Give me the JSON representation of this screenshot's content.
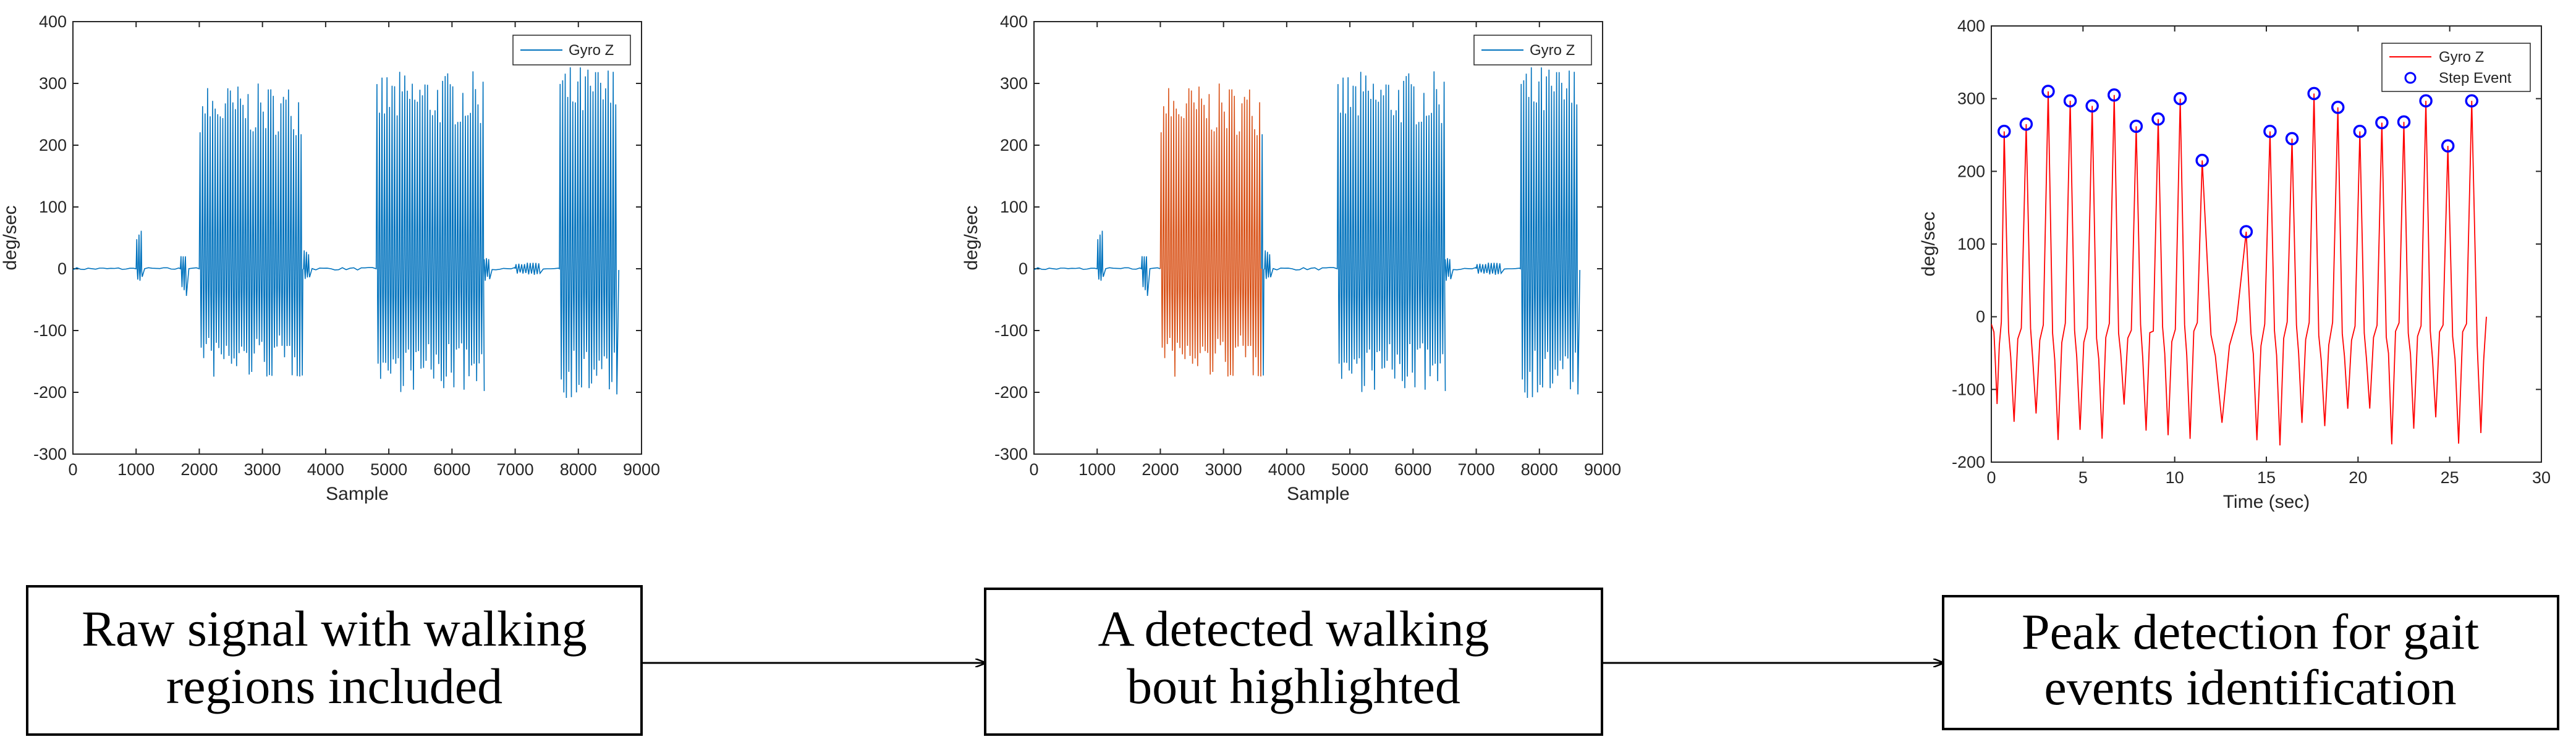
{
  "chart_data": [
    {
      "type": "line",
      "title": "",
      "xlabel": "Sample",
      "ylabel": "deg/sec",
      "xlim": [
        0,
        9000
      ],
      "ylim": [
        -300,
        400
      ],
      "xticks": [
        0,
        1000,
        2000,
        3000,
        4000,
        5000,
        6000,
        7000,
        8000,
        9000
      ],
      "yticks": [
        -300,
        -200,
        -100,
        0,
        100,
        200,
        300,
        400
      ],
      "legend": [
        "Gyro Z"
      ],
      "legend_position": "top-right",
      "series": [
        {
          "name": "Gyro Z",
          "color": "#0072BD",
          "bursts": [
            {
              "start": 1000,
              "end": 1100,
              "period": 35,
              "pos": 65,
              "neg": -20
            },
            {
              "start": 1700,
              "end": 1800,
              "period": 35,
              "pos": 25,
              "neg": -45
            },
            {
              "start": 2000,
              "end": 3600,
              "period": 40,
              "pos": 300,
              "neg": -180
            },
            {
              "start": 3650,
              "end": 3750,
              "period": 35,
              "pos": 30,
              "neg": -20
            },
            {
              "start": 4800,
              "end": 6500,
              "period": 40,
              "pos": 320,
              "neg": -200
            },
            {
              "start": 6500,
              "end": 6600,
              "period": 35,
              "pos": 20,
              "neg": -20
            },
            {
              "start": 7000,
              "end": 7400,
              "period": 45,
              "pos": 10,
              "neg": -10
            },
            {
              "start": 7700,
              "end": 8600,
              "period": 40,
              "pos": 330,
              "neg": -210
            }
          ]
        }
      ]
    },
    {
      "type": "line",
      "title": "",
      "xlabel": "Sample",
      "ylabel": "deg/sec",
      "xlim": [
        0,
        9000
      ],
      "ylim": [
        -300,
        400
      ],
      "xticks": [
        0,
        1000,
        2000,
        3000,
        4000,
        5000,
        6000,
        7000,
        8000,
        9000
      ],
      "yticks": [
        -300,
        -200,
        -100,
        0,
        100,
        200,
        300,
        400
      ],
      "legend": [
        "Gyro Z"
      ],
      "legend_position": "top-right",
      "highlight": {
        "start": 2000,
        "end": 3600,
        "color": "#D95319"
      },
      "series": [
        {
          "name": "Gyro Z",
          "color": "#0072BD",
          "bursts": [
            {
              "start": 1000,
              "end": 1100,
              "period": 35,
              "pos": 65,
              "neg": -20
            },
            {
              "start": 1700,
              "end": 1800,
              "period": 35,
              "pos": 25,
              "neg": -45
            },
            {
              "start": 2000,
              "end": 3600,
              "period": 40,
              "pos": 300,
              "neg": -180
            },
            {
              "start": 3650,
              "end": 3750,
              "period": 35,
              "pos": 30,
              "neg": -20
            },
            {
              "start": 4800,
              "end": 6500,
              "period": 40,
              "pos": 320,
              "neg": -200
            },
            {
              "start": 6500,
              "end": 6600,
              "period": 35,
              "pos": 20,
              "neg": -20
            },
            {
              "start": 7000,
              "end": 7400,
              "period": 45,
              "pos": 10,
              "neg": -10
            },
            {
              "start": 7700,
              "end": 8600,
              "period": 40,
              "pos": 330,
              "neg": -210
            }
          ]
        }
      ]
    },
    {
      "type": "line",
      "title": "",
      "xlabel": "Time (sec)",
      "ylabel": "deg/sec",
      "xlim": [
        0,
        30
      ],
      "ylim": [
        -200,
        400
      ],
      "xticks": [
        0,
        5,
        10,
        15,
        20,
        25,
        30
      ],
      "yticks": [
        -200,
        -100,
        0,
        100,
        200,
        300,
        400
      ],
      "legend": [
        "Gyro Z",
        "Step Event"
      ],
      "legend_position": "top-right",
      "series": [
        {
          "name": "Gyro Z",
          "color": "#FF0000",
          "end_time": 27,
          "end_value": 0
        },
        {
          "name": "Step Event",
          "color": "#0000FF",
          "marker": "circle",
          "points": [
            [
              0.7,
              255
            ],
            [
              1.9,
              265
            ],
            [
              3.1,
              310
            ],
            [
              4.3,
              297
            ],
            [
              5.5,
              290
            ],
            [
              6.7,
              305
            ],
            [
              7.9,
              262
            ],
            [
              9.1,
              272
            ],
            [
              10.3,
              300
            ],
            [
              11.5,
              215
            ],
            [
              13.9,
              117
            ],
            [
              15.2,
              255
            ],
            [
              16.4,
              245
            ],
            [
              17.6,
              307
            ],
            [
              18.9,
              288
            ],
            [
              20.1,
              255
            ],
            [
              21.3,
              267
            ],
            [
              22.5,
              268
            ],
            [
              23.7,
              297
            ],
            [
              24.9,
              235
            ],
            [
              26.2,
              297
            ]
          ]
        }
      ]
    }
  ],
  "captions": [
    {
      "line1": "Raw signal with walking",
      "line2": "regions included"
    },
    {
      "line1": "A detected walking",
      "line2": "bout highlighted"
    },
    {
      "line1": "Peak detection for gait",
      "line2": "events identification"
    }
  ]
}
